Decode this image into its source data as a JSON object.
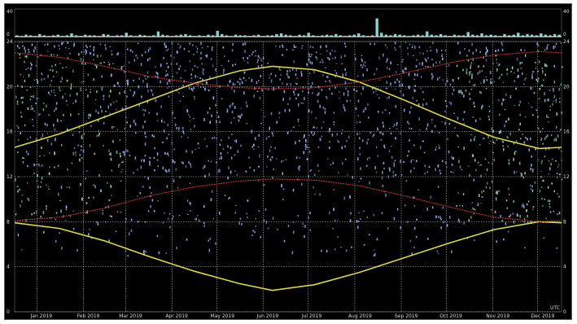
{
  "chart_data": [
    {
      "type": "bar",
      "panel": "activity-histogram",
      "title": "",
      "y_tick_labels_left": [
        "40",
        "0"
      ],
      "y_tick_labels_right": [
        "40",
        "0"
      ],
      "ylim": [
        0,
        40
      ],
      "colors": {
        "bars": "#7fd9d0",
        "baseline": "#e0e0e0"
      },
      "values": [
        2,
        1,
        3,
        2,
        1,
        4,
        2,
        1,
        2,
        3,
        1,
        2,
        5,
        2,
        1,
        3,
        2,
        2,
        1,
        4,
        3,
        1,
        2,
        2,
        6,
        2,
        1,
        3,
        2,
        1,
        2,
        8,
        3,
        2,
        1,
        2,
        3,
        4,
        2,
        1,
        2,
        1,
        3,
        2,
        9,
        4,
        2,
        1,
        3,
        2,
        2,
        1,
        2,
        3,
        1,
        2,
        2,
        4,
        5,
        3,
        2,
        1,
        3,
        2,
        6,
        2,
        1,
        2,
        3,
        2,
        4,
        2,
        1,
        2,
        3,
        5,
        2,
        1,
        2,
        28,
        6,
        3,
        2,
        4,
        3,
        2,
        1,
        2,
        3,
        2,
        8,
        3,
        2,
        4,
        2,
        1,
        3,
        2,
        2,
        7,
        3,
        2,
        5,
        2,
        3,
        2,
        1,
        4,
        2,
        3,
        6,
        2,
        4,
        3,
        2,
        5,
        3,
        2,
        4,
        3
      ]
    },
    {
      "type": "scatter",
      "panel": "main",
      "title": "",
      "xlabel": "",
      "ylabel": "",
      "x_tick_labels": [
        "Jan 2019",
        "Feb 2019",
        "Mar 2019",
        "Apr 2019",
        "May 2019",
        "Jun 2019",
        "Jul 2019",
        "Aug 2019",
        "Sep 2019",
        "Oct 2019",
        "Nov 2019",
        "Dec 2019"
      ],
      "y_tick_labels_left": [
        "24",
        "20",
        "16",
        "12",
        "8",
        "4",
        "0"
      ],
      "y_tick_labels_right": [
        "24",
        "20",
        "16",
        "12",
        "8",
        "4",
        "0"
      ],
      "ylim": [
        0,
        24
      ],
      "xlim": [
        0,
        365
      ],
      "grid": true,
      "corner_label": "UTC",
      "colors": {
        "background": "#000000",
        "grid": "#c8c8c8",
        "points_main": "#8fa4e0",
        "points_dense": "#86d49a",
        "sunrise_sunset": "#d9d93a",
        "twilight": "#c8323c"
      },
      "series": [
        {
          "name": "",
          "color": "#d9d93a",
          "x": [
            0,
            30,
            60,
            90,
            120,
            150,
            172,
            200,
            230,
            260,
            290,
            320,
            350,
            365
          ],
          "y": [
            7.9,
            7.4,
            6.3,
            4.9,
            3.6,
            2.5,
            1.9,
            2.4,
            3.5,
            4.8,
            6.1,
            7.3,
            8.0,
            7.9
          ]
        },
        {
          "name": "",
          "color": "#d9d93a",
          "x": [
            0,
            30,
            60,
            90,
            120,
            150,
            172,
            200,
            230,
            260,
            290,
            320,
            350,
            365
          ],
          "y": [
            14.6,
            15.8,
            17.3,
            18.8,
            20.3,
            21.4,
            21.8,
            21.5,
            20.4,
            18.8,
            17.1,
            15.5,
            14.5,
            14.6
          ]
        },
        {
          "name": "",
          "color": "#c8323c",
          "x": [
            0,
            30,
            60,
            90,
            120,
            150,
            172,
            200,
            230,
            260,
            290,
            320,
            350,
            365
          ],
          "y": [
            8.1,
            8.4,
            9.2,
            10.3,
            11.1,
            11.6,
            11.8,
            11.7,
            11.2,
            10.3,
            9.3,
            8.4,
            8.0,
            8.1
          ]
        },
        {
          "name": "",
          "color": "#c8323c",
          "x": [
            0,
            30,
            60,
            90,
            120,
            150,
            172,
            200,
            230,
            260,
            290,
            320,
            350,
            365
          ],
          "y": [
            23.0,
            22.6,
            21.8,
            20.9,
            20.3,
            19.9,
            19.8,
            19.9,
            20.4,
            21.2,
            22.1,
            22.8,
            23.1,
            23.0
          ]
        }
      ]
    }
  ]
}
